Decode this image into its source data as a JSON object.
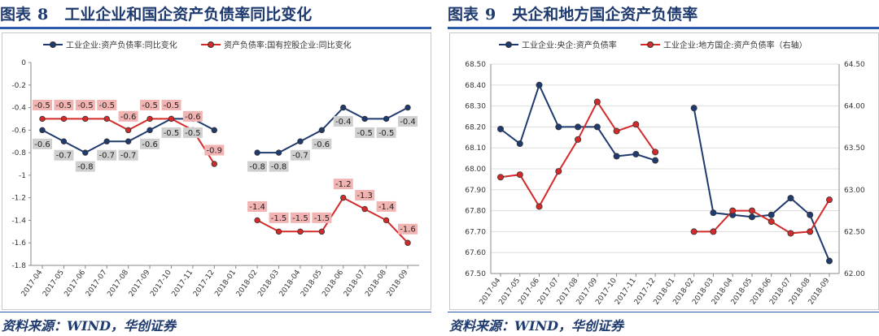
{
  "left": {
    "title_prefix": "图表",
    "title_num": "8",
    "title_text": "工业企业和国企资产负债率同比变化",
    "source": "资料来源：WIND，华创证券",
    "chart_data": {
      "type": "line",
      "categories": [
        "2017-04",
        "2017-05",
        "2017-06",
        "2017-07",
        "2017-08",
        "2017-09",
        "2017-10",
        "2017-11",
        "2017-12",
        "2018-01",
        "2018-02",
        "2018-03",
        "2018-04",
        "2018-05",
        "2018-06",
        "2018-07",
        "2018-08",
        "2018-09"
      ],
      "ylim": [
        -1.8,
        0
      ],
      "yticks": [
        "0",
        "-0.2",
        "-0.4",
        "-0.6",
        "-0.8",
        "-1",
        "-1.2",
        "-1.4",
        "-1.6",
        "-1.8"
      ],
      "series": [
        {
          "name": "工业企业:资产负债率:同比变化",
          "color": "#1f3a6e",
          "values": [
            -0.6,
            -0.7,
            -0.8,
            -0.7,
            -0.7,
            -0.6,
            -0.5,
            -0.5,
            -0.6,
            null,
            -0.8,
            -0.8,
            -0.7,
            -0.6,
            -0.4,
            -0.5,
            -0.5,
            -0.4
          ],
          "labels": [
            "-0.6",
            "-0.7",
            "-0.8",
            "-0.7",
            "-0.7",
            "-0.6",
            "-0.5",
            "-0.5",
            "",
            "",
            "-0.8",
            "-0.8",
            "-0.7",
            "-0.6",
            "-0.4",
            "-0.5",
            "-0.5",
            "-0.4"
          ]
        },
        {
          "name": "资产负债率:国有控股企业:同比变化",
          "color": "#d42a2a",
          "values": [
            -0.5,
            -0.5,
            -0.5,
            -0.5,
            -0.6,
            -0.5,
            -0.5,
            -0.6,
            -0.9,
            null,
            -1.4,
            -1.5,
            -1.5,
            -1.5,
            -1.2,
            -1.3,
            -1.4,
            -1.6
          ],
          "labels": [
            "-0.5",
            "-0.5",
            "-0.5",
            "-0.5",
            "-0.6",
            "-0.5",
            "-0.5",
            "-0.6",
            "-0.9",
            "",
            "-1.4",
            "-1.5",
            "-1.5",
            "-1.5",
            "-1.2",
            "-1.3",
            "-1.4",
            "-1.6"
          ]
        }
      ],
      "grid": false,
      "legend": "top"
    }
  },
  "right": {
    "title_prefix": "图表",
    "title_num": "9",
    "title_text": "央企和地方国企资产负债率",
    "source": "资料来源：WIND，华创证券",
    "chart_data": {
      "type": "line",
      "categories": [
        "2017-04",
        "2017-05",
        "2017-06",
        "2017-07",
        "2017-08",
        "2017-09",
        "2017-10",
        "2017-11",
        "2017-12",
        "2018-01",
        "2018-02",
        "2018-03",
        "2018-04",
        "2018-05",
        "2018-06",
        "2018-07",
        "2018-08",
        "2018-09"
      ],
      "ylim_left": [
        67.5,
        68.5
      ],
      "ylim_right": [
        62.0,
        64.5
      ],
      "yticks_left": [
        "68.50",
        "68.40",
        "68.30",
        "68.20",
        "68.10",
        "68.00",
        "67.90",
        "67.80",
        "67.70",
        "67.60",
        "67.50"
      ],
      "yticks_right": [
        "64.50",
        "64.00",
        "63.50",
        "63.00",
        "62.50",
        "62.00"
      ],
      "series": [
        {
          "name": "工业企业:央企:资产负债率",
          "color": "#1f3a6e",
          "axis": "left",
          "values": [
            68.19,
            68.12,
            68.4,
            68.2,
            68.2,
            68.2,
            68.06,
            68.07,
            68.04,
            null,
            68.29,
            67.79,
            67.78,
            67.77,
            67.78,
            67.86,
            67.78,
            67.56
          ]
        },
        {
          "name": "工业企业:地方国企:资产负债率（右轴）",
          "color": "#d42a2a",
          "axis": "right",
          "values": [
            63.15,
            63.18,
            62.8,
            63.22,
            63.6,
            64.05,
            63.7,
            63.78,
            63.45,
            null,
            62.5,
            62.5,
            62.75,
            62.75,
            62.62,
            62.48,
            62.5,
            62.88
          ]
        }
      ],
      "grid": true,
      "legend": "top"
    }
  }
}
